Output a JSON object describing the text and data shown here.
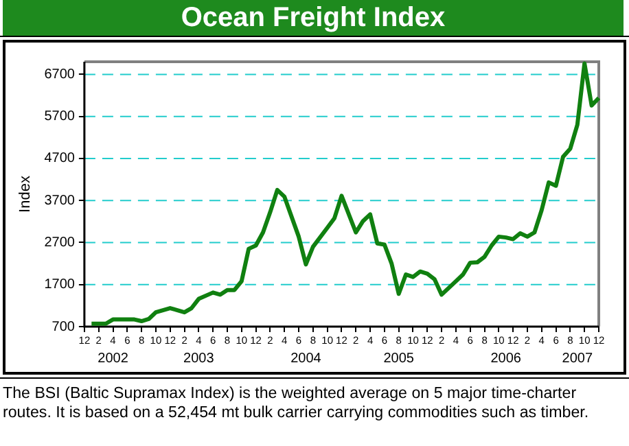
{
  "chart_data": {
    "type": "line",
    "title": "Ocean Freight Index",
    "ylabel": "Index",
    "annotations": [
      "The BSI (Baltic Supramax Index) is the weighted average on 5 major time-charter routes. It is based on a 52,454 mt bulk carrier carrying commodities such as timber."
    ],
    "x": [
      "2002-01",
      "2002-03",
      "2002-04",
      "2002-07",
      "2002-08",
      "2002-09",
      "2002-10",
      "2002-12",
      "2003-02",
      "2003-03",
      "2003-04",
      "2003-06",
      "2003-07",
      "2003-08",
      "2003-09",
      "2003-10",
      "2003-11",
      "2003-12",
      "2004-01",
      "2004-02",
      "2004-03",
      "2004-04",
      "2004-06",
      "2004-07",
      "2004-08",
      "2004-10",
      "2004-11",
      "2004-12",
      "2005-02",
      "2005-03",
      "2005-04",
      "2005-05",
      "2005-06",
      "2005-07",
      "2005-08",
      "2005-09",
      "2005-10",
      "2005-11",
      "2005-12",
      "2006-01",
      "2006-02",
      "2006-03",
      "2006-04",
      "2006-05",
      "2006-06",
      "2006-07",
      "2006-08",
      "2006-09",
      "2006-10",
      "2006-11",
      "2006-12",
      "2007-01",
      "2007-02",
      "2007-03",
      "2007-04",
      "2007-05",
      "2007-06",
      "2007-07",
      "2007-08",
      "2007-09",
      "2007-10",
      "2007-11",
      "2007-12"
    ],
    "series": [
      {
        "color": "#108010",
        "values": [
          770,
          770,
          870,
          870,
          830,
          880,
          1040,
          1140,
          1040,
          1140,
          1360,
          1510,
          1460,
          1570,
          1570,
          1780,
          2550,
          2630,
          2940,
          3420,
          3950,
          3790,
          2840,
          2180,
          2600,
          3050,
          3280,
          3810,
          2940,
          3210,
          3370,
          2680,
          2650,
          2200,
          1480,
          1940,
          1880,
          2010,
          1960,
          1830,
          1460,
          1620,
          1780,
          1940,
          2220,
          2230,
          2360,
          2630,
          2840,
          2820,
          2780,
          2920,
          2840,
          2940,
          3470,
          4130,
          4050,
          4740,
          4930,
          5500,
          6960,
          5960,
          6140
        ]
      }
    ],
    "ylim": [
      700,
      7000
    ],
    "yticks": [
      700,
      1700,
      2700,
      3700,
      4700,
      5700,
      6700
    ],
    "xlim": [
      "2001-12",
      "2007-12"
    ],
    "xticks": [
      {
        "value": "2001-12",
        "label": "12"
      },
      {
        "value": "2002-02",
        "label": "2"
      },
      {
        "value": "2002-04",
        "label": "4"
      },
      {
        "value": "2002-06",
        "label": "6"
      },
      {
        "value": "2002-08",
        "label": "8"
      },
      {
        "value": "2002-10",
        "label": "10"
      },
      {
        "value": "2002-12",
        "label": "12"
      },
      {
        "value": "2003-02",
        "label": "2"
      },
      {
        "value": "2003-04",
        "label": "4"
      },
      {
        "value": "2003-06",
        "label": "6"
      },
      {
        "value": "2003-08",
        "label": "8"
      },
      {
        "value": "2003-10",
        "label": "10"
      },
      {
        "value": "2003-12",
        "label": "12"
      },
      {
        "value": "2004-02",
        "label": "2"
      },
      {
        "value": "2004-04",
        "label": "4"
      },
      {
        "value": "2004-06",
        "label": "6"
      },
      {
        "value": "2004-08",
        "label": "8"
      },
      {
        "value": "2004-10",
        "label": "10"
      },
      {
        "value": "2004-12",
        "label": "12"
      },
      {
        "value": "2005-02",
        "label": "2"
      },
      {
        "value": "2005-04",
        "label": "4"
      },
      {
        "value": "2005-06",
        "label": "6"
      },
      {
        "value": "2005-08",
        "label": "8"
      },
      {
        "value": "2005-10",
        "label": "10"
      },
      {
        "value": "2005-12",
        "label": "12"
      },
      {
        "value": "2006-02",
        "label": "2"
      },
      {
        "value": "2006-04",
        "label": "4"
      },
      {
        "value": "2006-06",
        "label": "6"
      },
      {
        "value": "2006-08",
        "label": "8"
      },
      {
        "value": "2006-10",
        "label": "10"
      },
      {
        "value": "2006-12",
        "label": "12"
      },
      {
        "value": "2007-02",
        "label": "2"
      },
      {
        "value": "2007-04",
        "label": "4"
      },
      {
        "value": "2007-06",
        "label": "6"
      },
      {
        "value": "2007-08",
        "label": "8"
      },
      {
        "value": "2007-10",
        "label": "10"
      },
      {
        "value": "2007-12",
        "label": "12"
      }
    ],
    "x2lim": [
      "2001-12",
      "2007-12"
    ],
    "x2ticks": [
      {
        "value": "2002-04",
        "label": "2002"
      },
      {
        "value": "2003-04",
        "label": "2003"
      },
      {
        "value": "2004-07",
        "label": "2004"
      },
      {
        "value": "2005-08",
        "label": "2005"
      },
      {
        "value": "2006-11",
        "label": "2006"
      },
      {
        "value": "2007-09",
        "label": "2007"
      }
    ],
    "grid": "y",
    "legend": false,
    "marker": "none",
    "line_style": "solid"
  }
}
